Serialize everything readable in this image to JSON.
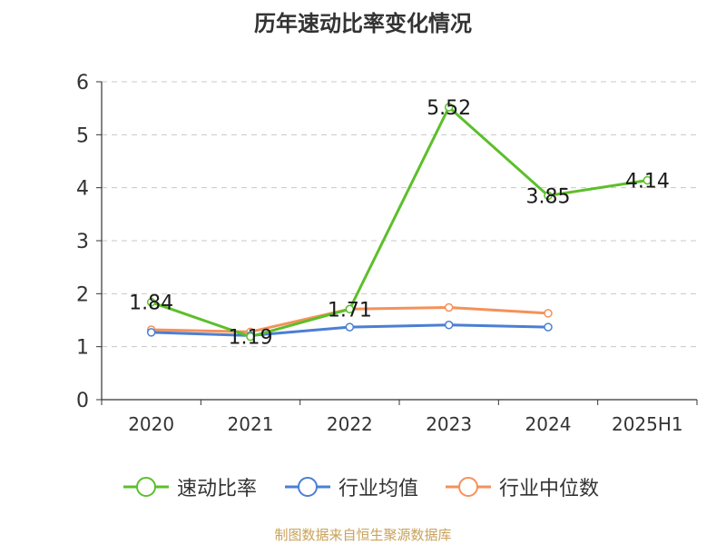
{
  "chart_data": {
    "type": "line",
    "title": "历年速动比率变化情况",
    "xlabel": "",
    "ylabel": "",
    "categories": [
      "2020",
      "2021",
      "2022",
      "2023",
      "2024",
      "2025H1"
    ],
    "ylim": [
      0,
      6
    ],
    "yticks": [
      "0",
      "1",
      "2",
      "3",
      "4",
      "5",
      "6"
    ],
    "grid": true,
    "legend_position": "bottom",
    "series": [
      {
        "name": "速动比率",
        "color": "#5cbf2a",
        "values": [
          1.84,
          1.19,
          1.71,
          5.52,
          3.85,
          4.14
        ],
        "labels": [
          "1.84",
          "1.19",
          "1.71",
          "5.52",
          "3.85",
          "4.14"
        ]
      },
      {
        "name": "行业均值",
        "color": "#4a7fd4",
        "values": [
          1.27,
          1.21,
          1.37,
          1.41,
          1.37,
          null
        ]
      },
      {
        "name": "行业中位数",
        "color": "#f5915a",
        "values": [
          1.32,
          1.28,
          1.71,
          1.74,
          1.63,
          null
        ]
      }
    ]
  },
  "footer": {
    "source": "制图数据来自恒生聚源数据库"
  }
}
